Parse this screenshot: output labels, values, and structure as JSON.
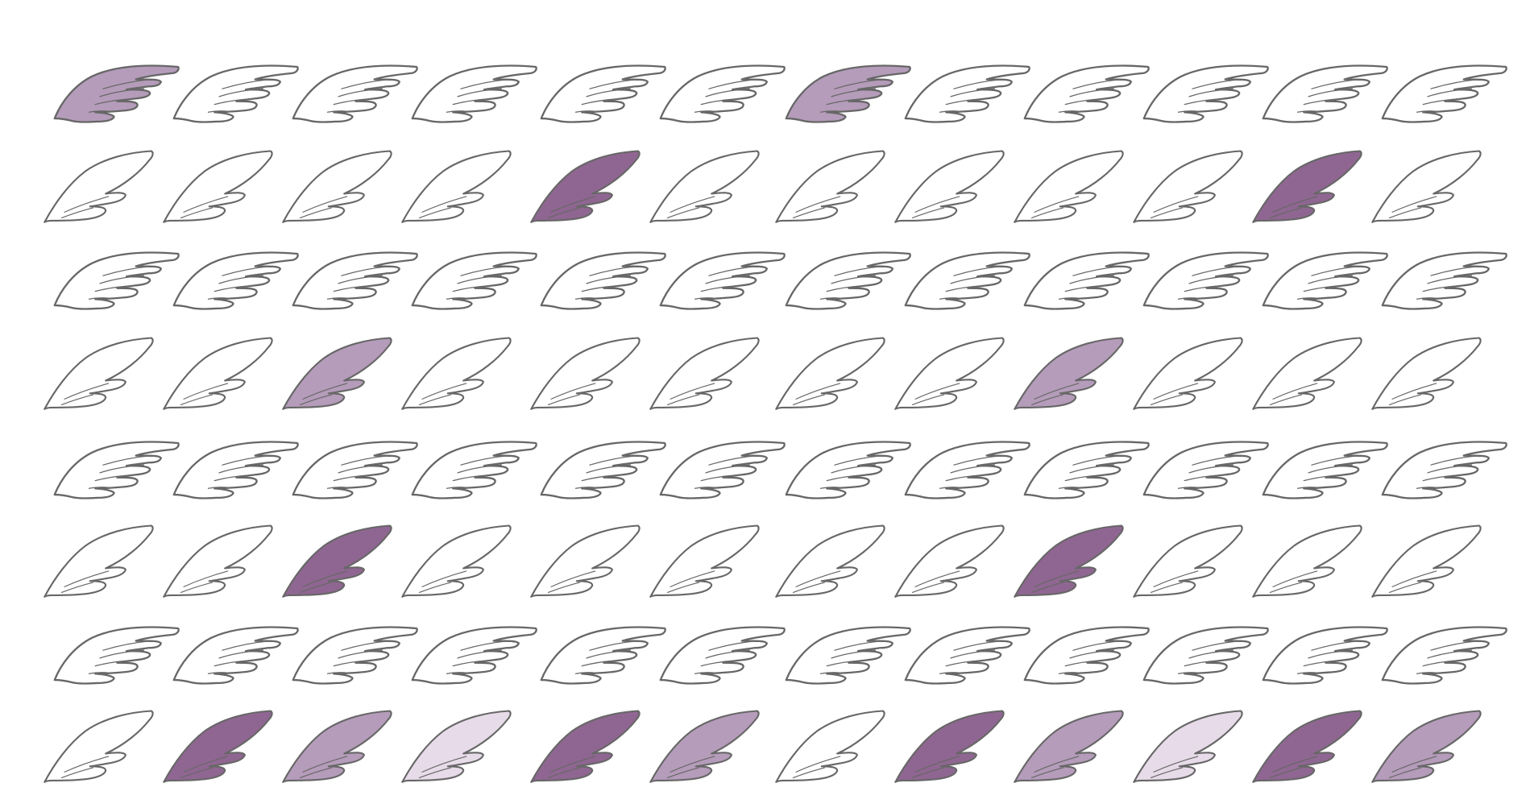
{
  "palette": {
    "none": "#ffffff",
    "dark": "#8f6691",
    "medium": "#b59cba",
    "light": "#e7dbe9",
    "stroke": "#676767"
  },
  "rows": [
    {
      "style": "swept",
      "fills": [
        "medium",
        "none",
        "none",
        "none",
        "none",
        "none",
        "medium",
        "none",
        "none",
        "none",
        "none",
        "none"
      ]
    },
    {
      "style": "raised",
      "fills": [
        "none",
        "none",
        "none",
        "none",
        "dark",
        "none",
        "none",
        "none",
        "none",
        "none",
        "dark",
        "none"
      ]
    },
    {
      "style": "swept",
      "fills": [
        "none",
        "none",
        "none",
        "none",
        "none",
        "none",
        "none",
        "none",
        "none",
        "none",
        "none",
        "none"
      ]
    },
    {
      "style": "raised",
      "fills": [
        "none",
        "none",
        "medium",
        "none",
        "none",
        "none",
        "none",
        "none",
        "medium",
        "none",
        "none",
        "none"
      ]
    },
    {
      "style": "swept",
      "fills": [
        "none",
        "none",
        "none",
        "none",
        "none",
        "none",
        "none",
        "none",
        "none",
        "none",
        "none",
        "none"
      ]
    },
    {
      "style": "raised",
      "fills": [
        "none",
        "none",
        "dark",
        "none",
        "none",
        "none",
        "none",
        "none",
        "dark",
        "none",
        "none",
        "none"
      ]
    },
    {
      "style": "swept",
      "fills": [
        "none",
        "none",
        "none",
        "none",
        "none",
        "none",
        "none",
        "none",
        "none",
        "none",
        "none",
        "none"
      ]
    },
    {
      "style": "raised",
      "fills": [
        "none",
        "dark",
        "medium",
        "light",
        "dark",
        "medium",
        "none",
        "dark",
        "medium",
        "light",
        "dark",
        "medium"
      ]
    }
  ]
}
